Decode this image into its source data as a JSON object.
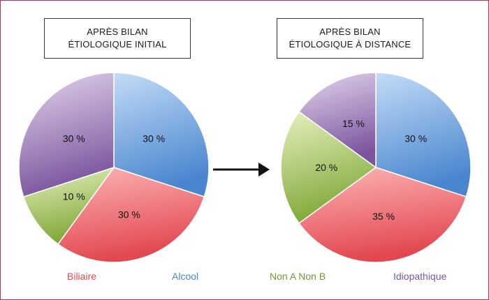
{
  "colors": {
    "Biliaire": "#e3474f",
    "Alcool": "#4a86cf",
    "Non A Non B": "#7fa838",
    "Idiopathique": "#7a559e"
  },
  "legend": [
    {
      "name": "Biliaire",
      "color": "#e3474f"
    },
    {
      "name": "Alcool",
      "color": "#4a86cf"
    },
    {
      "name": "Non A Non B",
      "color": "#6f9a32"
    },
    {
      "name": "Idiopathique",
      "color": "#7a559e"
    }
  ],
  "arrow_icon": "right-arrow-icon",
  "chart_data": [
    {
      "type": "pie",
      "title_lines": [
        "APRÈS BILAN",
        "ÉTIOLOGIQUE INITIAL"
      ],
      "slices": [
        {
          "name": "Alcool",
          "value": 30,
          "label": "30 %"
        },
        {
          "name": "Biliaire",
          "value": 30,
          "label": "30 %"
        },
        {
          "name": "Non A Non B",
          "value": 10,
          "label": "10 %"
        },
        {
          "name": "Idiopathique",
          "value": 30,
          "label": "30 %"
        }
      ]
    },
    {
      "type": "pie",
      "title_lines": [
        "APRÈS BILAN",
        "ÉTIOLOGIQUE À DISTANCE"
      ],
      "slices": [
        {
          "name": "Alcool",
          "value": 30,
          "label": "30 %"
        },
        {
          "name": "Biliaire",
          "value": 35,
          "label": "35 %"
        },
        {
          "name": "Non A Non B",
          "value": 20,
          "label": "20 %"
        },
        {
          "name": "Idiopathique",
          "value": 15,
          "label": "15 %"
        }
      ]
    }
  ]
}
